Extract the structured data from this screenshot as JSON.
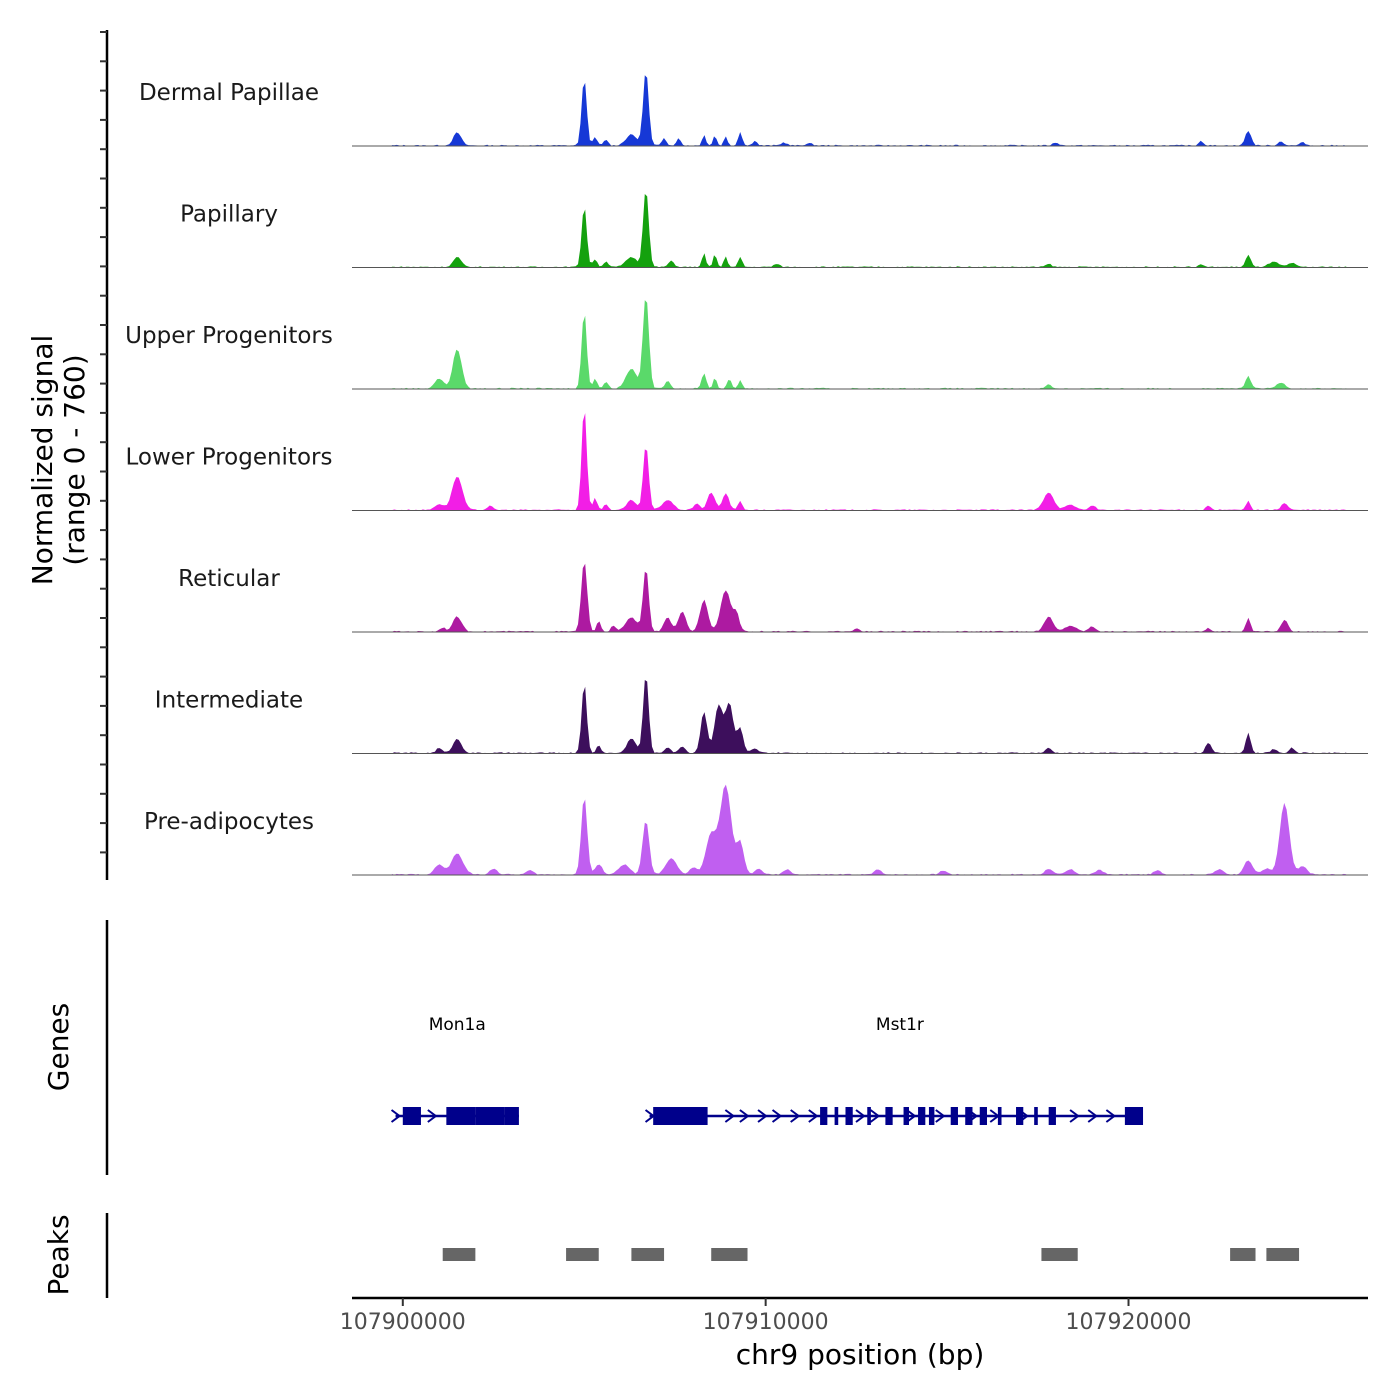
{
  "chart_data": {
    "type": "area",
    "title": "",
    "ylabel_line1": "Normalized signal",
    "ylabel_line2": "(range 0 - 760)",
    "ylim": [
      0,
      760
    ],
    "xlabel": "chr9 position (bp)",
    "xlim": [
      107898600,
      107926600
    ],
    "x_ticks": [
      {
        "value": 107900000,
        "label": "107900000"
      },
      {
        "value": 107910000,
        "label": "107910000"
      },
      {
        "value": 107920000,
        "label": "107920000"
      }
    ],
    "series": [
      {
        "name": "Dermal Papillae",
        "color": "#1638d6",
        "peaks": [
          [
            107901500,
            130,
            110
          ],
          [
            107905000,
            680,
            70
          ],
          [
            107905300,
            80,
            60
          ],
          [
            107905600,
            60,
            60
          ],
          [
            107906300,
            110,
            150
          ],
          [
            107906700,
            760,
            75
          ],
          [
            107907200,
            80,
            60
          ],
          [
            107907600,
            70,
            60
          ],
          [
            107908300,
            110,
            50
          ],
          [
            107908600,
            100,
            50
          ],
          [
            107908900,
            90,
            50
          ],
          [
            107909300,
            140,
            55
          ],
          [
            107909700,
            50,
            60
          ],
          [
            107910500,
            30,
            80
          ],
          [
            107911200,
            20,
            100
          ],
          [
            107918000,
            30,
            80
          ],
          [
            107922000,
            50,
            60
          ],
          [
            107923300,
            150,
            80
          ],
          [
            107924200,
            40,
            80
          ],
          [
            107924800,
            30,
            80
          ]
        ]
      },
      {
        "name": "Papillary",
        "color": "#14a10e",
        "peaks": [
          [
            107901500,
            100,
            110
          ],
          [
            107905000,
            620,
            70
          ],
          [
            107905300,
            80,
            60
          ],
          [
            107905600,
            60,
            60
          ],
          [
            107906300,
            100,
            150
          ],
          [
            107906700,
            800,
            75
          ],
          [
            107907400,
            60,
            80
          ],
          [
            107908300,
            140,
            50
          ],
          [
            107908600,
            130,
            50
          ],
          [
            107908900,
            110,
            50
          ],
          [
            107909300,
            100,
            55
          ],
          [
            107910300,
            30,
            80
          ],
          [
            107917800,
            30,
            80
          ],
          [
            107922000,
            30,
            60
          ],
          [
            107923300,
            120,
            70
          ],
          [
            107924000,
            50,
            140
          ],
          [
            107924500,
            40,
            100
          ]
        ]
      },
      {
        "name": "Upper Progenitors",
        "color": "#5ad96a",
        "peaks": [
          [
            107901000,
            100,
            120
          ],
          [
            107901500,
            400,
            120
          ],
          [
            107905000,
            780,
            70
          ],
          [
            107905300,
            100,
            60
          ],
          [
            107905600,
            70,
            60
          ],
          [
            107906300,
            200,
            150
          ],
          [
            107906700,
            950,
            80
          ],
          [
            107907300,
            70,
            80
          ],
          [
            107908300,
            160,
            60
          ],
          [
            107908600,
            110,
            50
          ],
          [
            107909000,
            90,
            60
          ],
          [
            107909300,
            90,
            50
          ],
          [
            107917800,
            40,
            80
          ],
          [
            107923300,
            130,
            70
          ],
          [
            107924200,
            60,
            120
          ]
        ]
      },
      {
        "name": "Lower Progenitors",
        "color": "#f21ee6",
        "peaks": [
          [
            107901000,
            60,
            120
          ],
          [
            107901500,
            340,
            140
          ],
          [
            107902400,
            40,
            80
          ],
          [
            107905000,
            1050,
            70
          ],
          [
            107905300,
            120,
            60
          ],
          [
            107905600,
            60,
            60
          ],
          [
            107906300,
            100,
            120
          ],
          [
            107906700,
            660,
            75
          ],
          [
            107907300,
            100,
            150
          ],
          [
            107908100,
            70,
            80
          ],
          [
            107908500,
            180,
            100
          ],
          [
            107908900,
            170,
            90
          ],
          [
            107909300,
            90,
            60
          ],
          [
            107917800,
            180,
            140
          ],
          [
            107918400,
            50,
            150
          ],
          [
            107919000,
            40,
            100
          ],
          [
            107922200,
            50,
            60
          ],
          [
            107923300,
            90,
            60
          ],
          [
            107924300,
            70,
            90
          ]
        ]
      },
      {
        "name": "Reticular",
        "color": "#ad1aa1",
        "peaks": [
          [
            107901500,
            150,
            120
          ],
          [
            107901100,
            40,
            80
          ],
          [
            107905000,
            720,
            80
          ],
          [
            107905400,
            100,
            60
          ],
          [
            107905800,
            60,
            60
          ],
          [
            107906300,
            140,
            160
          ],
          [
            107906700,
            650,
            75
          ],
          [
            107907300,
            140,
            100
          ],
          [
            107907700,
            200,
            100
          ],
          [
            107908300,
            320,
            110
          ],
          [
            107908900,
            420,
            140
          ],
          [
            107909200,
            170,
            80
          ],
          [
            107912500,
            30,
            80
          ],
          [
            107917800,
            150,
            120
          ],
          [
            107918400,
            60,
            150
          ],
          [
            107919000,
            50,
            100
          ],
          [
            107922200,
            40,
            60
          ],
          [
            107923300,
            140,
            60
          ],
          [
            107924300,
            120,
            90
          ]
        ]
      },
      {
        "name": "Intermediate",
        "color": "#3d0f5c",
        "peaks": [
          [
            107901000,
            50,
            80
          ],
          [
            107901500,
            140,
            120
          ],
          [
            107905000,
            710,
            70
          ],
          [
            107905400,
            80,
            60
          ],
          [
            107906300,
            150,
            120
          ],
          [
            107906700,
            800,
            75
          ],
          [
            107907300,
            60,
            80
          ],
          [
            107907700,
            70,
            80
          ],
          [
            107908300,
            420,
            90
          ],
          [
            107908700,
            480,
            110
          ],
          [
            107909000,
            500,
            110
          ],
          [
            107909300,
            250,
            80
          ],
          [
            107909700,
            40,
            100
          ],
          [
            107917800,
            50,
            80
          ],
          [
            107922200,
            100,
            80
          ],
          [
            107923300,
            200,
            70
          ],
          [
            107924000,
            40,
            80
          ],
          [
            107924500,
            50,
            80
          ]
        ]
      },
      {
        "name": "Pre-adipocytes",
        "color": "#c05ff0",
        "peaks": [
          [
            107901000,
            100,
            120
          ],
          [
            107901500,
            210,
            160
          ],
          [
            107902500,
            60,
            100
          ],
          [
            107903500,
            40,
            100
          ],
          [
            107905000,
            800,
            80
          ],
          [
            107905400,
            100,
            100
          ],
          [
            107906100,
            100,
            150
          ],
          [
            107906700,
            550,
            90
          ],
          [
            107907400,
            160,
            150
          ],
          [
            107908000,
            70,
            100
          ],
          [
            107908500,
            400,
            150
          ],
          [
            107908900,
            900,
            150
          ],
          [
            107909300,
            320,
            100
          ],
          [
            107909800,
            60,
            100
          ],
          [
            107910600,
            50,
            100
          ],
          [
            107913100,
            50,
            100
          ],
          [
            107914900,
            40,
            100
          ],
          [
            107917800,
            60,
            100
          ],
          [
            107918400,
            50,
            120
          ],
          [
            107919200,
            50,
            100
          ],
          [
            107920800,
            40,
            100
          ],
          [
            107922500,
            50,
            120
          ],
          [
            107923300,
            140,
            120
          ],
          [
            107923800,
            60,
            120
          ],
          [
            107924300,
            720,
            130
          ],
          [
            107924800,
            80,
            120
          ]
        ]
      }
    ],
    "genes": [
      {
        "name": "Mon1a",
        "start": 107899800,
        "end": 107903200,
        "label_x": 107901500,
        "exons": [
          [
            107900000,
            107900500
          ],
          [
            107901200,
            107902000
          ],
          [
            107902000,
            107902800
          ],
          [
            107902800,
            107903200
          ]
        ],
        "arrows": [
          107899800,
          107900800
        ]
      },
      {
        "name": "Mst1r",
        "start": 107906800,
        "end": 107920300,
        "label_x": 107913700,
        "exons": [
          [
            107906900,
            107908400
          ],
          [
            107911500,
            107911700
          ],
          [
            107911900,
            107912000
          ],
          [
            107912200,
            107912400
          ],
          [
            107912800,
            107912900
          ],
          [
            107913300,
            107913500
          ],
          [
            107913800,
            107913950
          ],
          [
            107914200,
            107914400
          ],
          [
            107914500,
            107914650
          ],
          [
            107915100,
            107915300
          ],
          [
            107915500,
            107915700
          ],
          [
            107915900,
            107916100
          ],
          [
            107916400,
            107916500
          ],
          [
            107916900,
            107917100
          ],
          [
            107917400,
            107917500
          ],
          [
            107917800,
            107918000
          ],
          [
            107919900,
            107920400
          ]
        ],
        "arrows": [
          107906800,
          107909000,
          107909400,
          107909900,
          107910300,
          107910800,
          107911300,
          107912600,
          107913000,
          107914000,
          107914800,
          107915700,
          107916300,
          107917100,
          107918500,
          107919000,
          107919500
        ]
      }
    ],
    "gene_color": "#00008b",
    "peak_color": "#666666",
    "peaks": [
      [
        107901100,
        107902000
      ],
      [
        107904500,
        107905400
      ],
      [
        107906300,
        107907200
      ],
      [
        107908500,
        107909500
      ],
      [
        107917600,
        107918600
      ],
      [
        107922800,
        107923500
      ],
      [
        107923800,
        107924700
      ]
    ],
    "panel_labels": {
      "genes": "Genes",
      "peaks": "Peaks"
    }
  }
}
